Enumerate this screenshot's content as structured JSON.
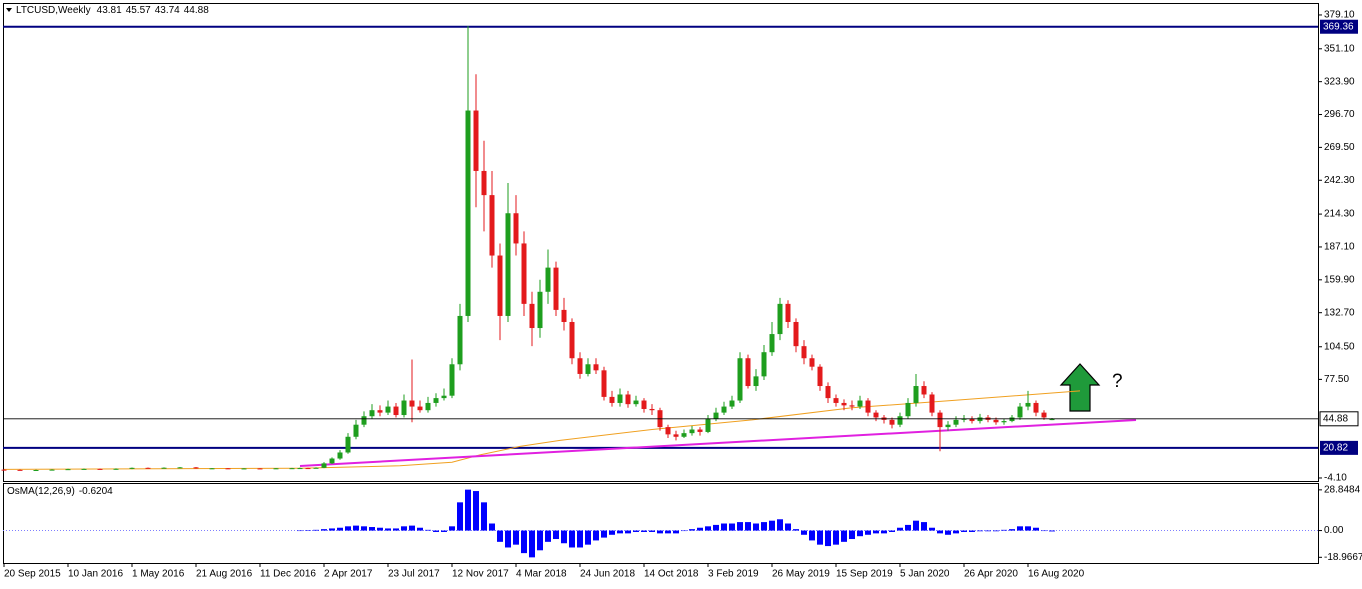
{
  "chart_data": [
    {
      "type": "candlestick",
      "title": "LTCUSD,Weekly",
      "x": [
        0,
        4,
        8,
        12,
        16,
        20,
        24,
        28,
        32,
        36,
        40,
        44,
        48,
        52,
        56,
        60,
        64,
        68,
        72,
        74,
        76,
        78,
        80,
        82,
        84,
        86,
        88,
        90,
        92,
        94,
        96,
        98,
        100,
        102,
        104,
        106,
        108,
        110,
        112,
        114,
        116,
        118,
        120,
        122,
        124,
        126,
        128,
        130,
        132,
        134,
        136,
        138,
        140,
        142,
        144,
        146,
        148,
        150,
        152,
        154,
        156,
        158,
        160,
        162,
        164,
        166,
        168,
        170,
        172,
        174,
        176,
        178,
        180,
        182,
        184,
        186,
        188,
        190,
        192,
        194,
        196,
        198,
        200,
        202,
        204,
        206,
        208,
        210,
        212,
        214,
        216,
        218,
        220,
        222,
        224,
        226,
        228,
        230,
        232,
        234,
        236,
        238,
        240,
        242,
        244,
        246,
        248,
        250,
        252,
        254,
        256,
        258,
        260,
        262
      ],
      "open": [
        2.8,
        2.6,
        2.4,
        2.5,
        2.8,
        3.2,
        3.4,
        3.0,
        3.5,
        4.3,
        4.0,
        4.4,
        4.7,
        3.8,
        3.9,
        3.7,
        3.8,
        3.7,
        3.9,
        4.0,
        4.1,
        4.0,
        4.3,
        8,
        12,
        17,
        30,
        40,
        47,
        52,
        50,
        55,
        48,
        60,
        55,
        52,
        58,
        62,
        64,
        90,
        130,
        300,
        250,
        230,
        180,
        130,
        215,
        190,
        140,
        120,
        150,
        170,
        135,
        125,
        95,
        82,
        90,
        85,
        63,
        58,
        65,
        57,
        60,
        53,
        52,
        38,
        32,
        30,
        33,
        36,
        34,
        45,
        50,
        55,
        60,
        95,
        72,
        80,
        100,
        115,
        140,
        125,
        105,
        95,
        88,
        72,
        62,
        58,
        56,
        55,
        60,
        50,
        46,
        44,
        40,
        47,
        58,
        72,
        65,
        50,
        38,
        40,
        44,
        45,
        43,
        46,
        44,
        42,
        43,
        46,
        55,
        58,
        50,
        43.81
      ],
      "high": [
        3.1,
        2.9,
        2.8,
        3.1,
        3.5,
        3.7,
        3.7,
        3.8,
        4.6,
        4.6,
        4.7,
        5.0,
        5.0,
        4.2,
        4.2,
        4.1,
        4.1,
        4.2,
        4.3,
        4.5,
        4.4,
        4.7,
        9,
        13,
        19,
        33,
        44,
        51,
        57,
        56,
        60,
        58,
        65,
        94,
        60,
        63,
        66,
        70,
        95,
        140,
        370,
        330,
        275,
        250,
        190,
        240,
        230,
        200,
        150,
        160,
        185,
        175,
        145,
        128,
        100,
        95,
        95,
        88,
        68,
        70,
        68,
        64,
        62,
        57,
        54,
        40,
        35,
        36,
        39,
        38,
        48,
        54,
        59,
        64,
        100,
        98,
        86,
        106,
        125,
        145,
        143,
        128,
        110,
        98,
        90,
        75,
        65,
        61,
        60,
        64,
        62,
        52,
        48,
        46,
        50,
        62,
        82,
        76,
        67,
        52,
        43,
        47,
        48,
        47,
        49,
        48,
        46,
        45,
        48,
        58,
        68,
        60,
        52,
        45.57
      ],
      "low": [
        2.3,
        2.1,
        2.1,
        2.2,
        2.5,
        2.9,
        2.7,
        2.7,
        3.2,
        3.7,
        3.7,
        4.1,
        3.5,
        3.5,
        3.4,
        3.4,
        3.4,
        3.4,
        3.6,
        3.7,
        3.8,
        3.8,
        4.1,
        7.5,
        11,
        16,
        28,
        38,
        45,
        47,
        48,
        46,
        46,
        42,
        50,
        50,
        55,
        60,
        62,
        85,
        125,
        220,
        200,
        170,
        110,
        125,
        180,
        130,
        105,
        112,
        140,
        130,
        118,
        90,
        78,
        80,
        82,
        60,
        55,
        55,
        54,
        55,
        50,
        48,
        35,
        29,
        27,
        29,
        31,
        31,
        33,
        43,
        48,
        53,
        58,
        70,
        68,
        77,
        97,
        110,
        120,
        100,
        90,
        85,
        68,
        58,
        55,
        52,
        52,
        53,
        47,
        43,
        41,
        37,
        38,
        45,
        55,
        62,
        47,
        18,
        35,
        38,
        42,
        41,
        41,
        42,
        40,
        40,
        42,
        44,
        52,
        47,
        44,
        43.74
      ],
      "close": [
        2.6,
        2.4,
        2.5,
        2.8,
        3.2,
        3.4,
        3.0,
        3.5,
        4.3,
        4.0,
        4.4,
        4.7,
        3.8,
        3.9,
        3.7,
        3.8,
        3.7,
        3.9,
        4.0,
        4.1,
        4.0,
        4.3,
        8,
        12,
        17,
        30,
        40,
        47,
        52,
        50,
        55,
        48,
        60,
        55,
        52,
        58,
        62,
        64,
        90,
        130,
        300,
        250,
        230,
        180,
        130,
        215,
        190,
        140,
        120,
        150,
        170,
        135,
        125,
        95,
        82,
        90,
        85,
        63,
        58,
        65,
        57,
        60,
        53,
        52,
        38,
        32,
        30,
        33,
        36,
        34,
        45,
        50,
        55,
        60,
        95,
        72,
        80,
        100,
        115,
        140,
        125,
        105,
        95,
        88,
        72,
        62,
        58,
        56,
        55,
        60,
        50,
        46,
        44,
        40,
        47,
        58,
        72,
        65,
        50,
        38,
        40,
        44,
        45,
        43,
        46,
        44,
        42,
        43,
        46,
        55,
        58,
        50,
        46,
        44.88
      ],
      "up_color": "#1e9e1e",
      "down_color": "#e31a1c",
      "xlim": [
        -0.25,
        328.5
      ],
      "ylim": [
        -6.6,
        389.0
      ],
      "yticks": [
        {
          "value": 379.1,
          "label": "379.10"
        },
        {
          "value": 351.1,
          "label": "351.10"
        },
        {
          "value": 323.9,
          "label": "323.90"
        },
        {
          "value": 296.7,
          "label": "296.70"
        },
        {
          "value": 269.5,
          "label": "269.50"
        },
        {
          "value": 242.3,
          "label": "242.30"
        },
        {
          "value": 214.3,
          "label": "214.30"
        },
        {
          "value": 187.1,
          "label": "187.10"
        },
        {
          "value": 159.9,
          "label": "159.90"
        },
        {
          "value": 132.7,
          "label": "132.70"
        },
        {
          "value": 104.5,
          "label": "104.50"
        },
        {
          "value": 77.5,
          "label": "77.50"
        },
        {
          "value": -4.1,
          "label": "-4.10"
        }
      ],
      "xticks": [
        {
          "value": 0,
          "label": "20 Sep 2015"
        },
        {
          "value": 16,
          "label": "10 Jan 2016"
        },
        {
          "value": 32,
          "label": "1 May 2016"
        },
        {
          "value": 48,
          "label": "21 Aug 2016"
        },
        {
          "value": 64,
          "label": "11 Dec 2016"
        },
        {
          "value": 80,
          "label": "2 Apr 2017"
        },
        {
          "value": 96,
          "label": "23 Jul 2017"
        },
        {
          "value": 112,
          "label": "12 Nov 2017"
        },
        {
          "value": 128,
          "label": "4 Mar 2018"
        },
        {
          "value": 144,
          "label": "24 Jun 2018"
        },
        {
          "value": 160,
          "label": "14 Oct 2018"
        },
        {
          "value": 176,
          "label": "3 Feb 2019"
        },
        {
          "value": 192,
          "label": "26 May 2019"
        },
        {
          "value": 208,
          "label": "15 Sep 2019"
        },
        {
          "value": 224,
          "label": "5 Jan 2020"
        },
        {
          "value": 240,
          "label": "26 Apr 2020"
        },
        {
          "value": 256,
          "label": "16 Aug 2020"
        }
      ],
      "hlines": [
        {
          "value": 369.36,
          "label": "369.36",
          "color": "#000080"
        },
        {
          "value": 20.82,
          "label": "20.82",
          "color": "#000080"
        }
      ],
      "ma": {
        "color": "#f0a020",
        "x": [
          0,
          74,
          99,
          112,
          119,
          129,
          139,
          162,
          187,
          212,
          237,
          269
        ],
        "values": [
          3,
          4,
          6,
          9,
          15,
          22,
          27,
          36,
          44,
          54,
          60,
          68
        ]
      },
      "trendline": {
        "color": "#e020e0",
        "x": [
          74,
          283
        ],
        "values": [
          5.8,
          43.9
        ]
      },
      "annotation": "?"
    },
    {
      "type": "bar",
      "title": "OsMA(12,26,9)",
      "color": "#0000ff",
      "x": [
        74,
        76,
        78,
        80,
        82,
        84,
        86,
        88,
        90,
        92,
        94,
        96,
        98,
        100,
        102,
        104,
        106,
        108,
        110,
        112,
        114,
        116,
        118,
        120,
        122,
        124,
        126,
        128,
        130,
        132,
        134,
        136,
        138,
        140,
        142,
        144,
        146,
        148,
        150,
        152,
        154,
        156,
        158,
        160,
        162,
        164,
        166,
        168,
        170,
        172,
        174,
        176,
        178,
        180,
        182,
        184,
        186,
        188,
        190,
        192,
        194,
        196,
        198,
        200,
        202,
        204,
        206,
        208,
        210,
        212,
        214,
        216,
        218,
        220,
        222,
        224,
        226,
        228,
        230,
        232,
        234,
        236,
        238,
        240,
        242,
        244,
        246,
        248,
        250,
        252,
        254,
        256,
        258,
        260,
        262
      ],
      "values": [
        0,
        0.2,
        0.5,
        1,
        1.5,
        2,
        3,
        3.5,
        3,
        2.5,
        2,
        1.5,
        1.5,
        3,
        3.5,
        2,
        0.5,
        -1,
        -1,
        3,
        20,
        29,
        28,
        20,
        5,
        -8,
        -12,
        -10,
        -16,
        -19,
        -14,
        -8,
        -6,
        -9,
        -12,
        -12,
        -10,
        -7,
        -5,
        -3,
        -2,
        -2,
        -1,
        -1,
        -1,
        -2,
        -2,
        -2,
        0,
        1,
        2,
        3,
        4,
        5,
        5,
        6,
        6,
        5,
        6,
        7,
        8,
        5,
        1,
        -3,
        -7,
        -10,
        -11,
        -10,
        -8,
        -6,
        -4,
        -3,
        -2,
        -2,
        -1,
        2,
        4,
        7,
        6,
        2,
        -2,
        -3,
        -2,
        -1,
        -1,
        -0.5,
        -0.5,
        -0.5,
        0.5,
        1,
        3,
        3,
        2,
        0,
        -0.6204
      ],
      "ylim": [
        -23,
        33
      ],
      "yticks": [
        28.8484,
        {
          "value": 0,
          "label": "0.00"
        },
        -18.9667
      ]
    }
  ]
}
